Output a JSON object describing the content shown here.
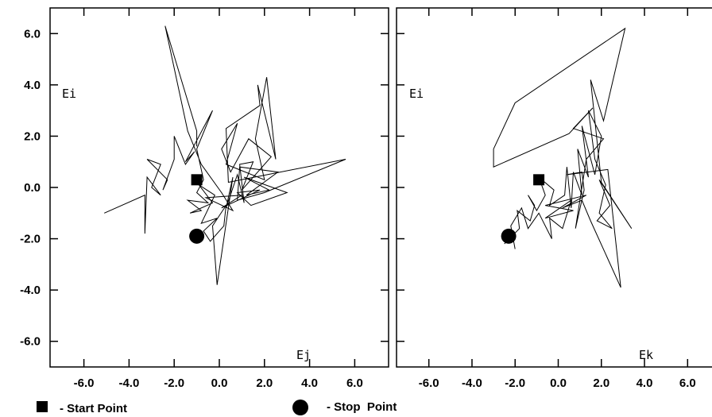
{
  "chart_data": [
    {
      "type": "line",
      "xlim": [
        -7.5,
        7.5
      ],
      "ylim": [
        -7,
        7
      ],
      "x_ticks": [
        "-6.0",
        "-4.0",
        "-2.0",
        "0.0",
        "2.0",
        "4.0",
        "6.0"
      ],
      "y_ticks": [
        "6.0",
        "4.0",
        "2.0",
        "0.0",
        "-2.0",
        "-4.0",
        "-6.0"
      ],
      "ylabel": "Ei",
      "xlabel": "Ej",
      "start": [
        -1.0,
        0.3
      ],
      "stop": [
        -1.0,
        -1.9
      ],
      "series": [
        {
          "values": [
            [
              -5.1,
              -1.0
            ],
            [
              -3.3,
              -0.3
            ],
            [
              -3.3,
              -1.8
            ],
            [
              -3.2,
              0.4
            ],
            [
              -2.6,
              -0.3
            ],
            [
              -3.0,
              0.0
            ],
            [
              -2.6,
              0.9
            ],
            [
              -3.2,
              1.1
            ],
            [
              -2.3,
              0.3
            ],
            [
              -2.5,
              -0.1
            ],
            [
              -2.0,
              1.1
            ],
            [
              -2.0,
              2.0
            ],
            [
              -1.5,
              0.9
            ],
            [
              -1.1,
              1.4
            ],
            [
              -1.5,
              1.0
            ],
            [
              -0.3,
              3.0
            ],
            [
              -1.0,
              1.5
            ],
            [
              -0.7,
              0.3
            ],
            [
              -1.0,
              -0.2
            ],
            [
              -0.5,
              -0.6
            ],
            [
              -1.4,
              -0.5
            ],
            [
              -0.8,
              -0.9
            ],
            [
              -1.3,
              -1.0
            ],
            [
              -0.3,
              -0.6
            ],
            [
              -0.9,
              0.1
            ],
            [
              -0.2,
              -0.3
            ],
            [
              -0.8,
              -1.4
            ],
            [
              -0.1,
              -1.2
            ],
            [
              -0.7,
              -1.7
            ],
            [
              -0.4,
              -2.1
            ],
            [
              0.2,
              -1.5
            ],
            [
              0.3,
              -0.7
            ],
            [
              -0.3,
              -1.5
            ],
            [
              -0.1,
              -3.8
            ],
            [
              0.6,
              0.4
            ],
            [
              0.3,
              -0.8
            ],
            [
              0.8,
              0.5
            ],
            [
              1.1,
              -0.6
            ],
            [
              0.9,
              0.9
            ],
            [
              1.5,
              1.0
            ],
            [
              1.0,
              -0.1
            ],
            [
              2.3,
              1.2
            ],
            [
              1.3,
              1.9
            ],
            [
              0.5,
              0.6
            ],
            [
              0.1,
              1.5
            ],
            [
              0.8,
              2.5
            ],
            [
              0.3,
              0.9
            ],
            [
              2.0,
              0.3
            ],
            [
              1.6,
              1.9
            ],
            [
              2.1,
              4.3
            ],
            [
              2.5,
              1.1
            ],
            [
              1.7,
              4.0
            ],
            [
              1.8,
              3.2
            ],
            [
              0.3,
              2.3
            ],
            [
              0.4,
              0.2
            ],
            [
              5.6,
              1.1
            ],
            [
              2.0,
              -0.2
            ],
            [
              0.8,
              -0.5
            ],
            [
              0.9,
              0.8
            ],
            [
              2.6,
              0.6
            ],
            [
              1.2,
              -0.3
            ],
            [
              2.2,
              -0.1
            ],
            [
              1.1,
              0.4
            ],
            [
              3.0,
              -0.2
            ],
            [
              1.4,
              -0.7
            ],
            [
              0.8,
              -0.2
            ],
            [
              1.8,
              -0.1
            ],
            [
              0.1,
              -0.8
            ],
            [
              1.0,
              -0.3
            ],
            [
              -0.6,
              -0.4
            ],
            [
              0.6,
              -0.9
            ],
            [
              0.1,
              -0.2
            ],
            [
              -0.8,
              0.9
            ],
            [
              -1.4,
              2.2
            ],
            [
              -2.4,
              6.3
            ],
            [
              -1.0,
              2.2
            ],
            [
              -1.0,
              1.6
            ]
          ]
        }
      ]
    },
    {
      "type": "line",
      "xlim": [
        -7.5,
        7.5
      ],
      "ylim": [
        -7,
        7
      ],
      "x_ticks": [
        "-6.0",
        "-4.0",
        "-2.0",
        "0.0",
        "2.0",
        "4.0",
        "6.0"
      ],
      "y_ticks": [],
      "ylabel": "Ei",
      "xlabel": "Ek",
      "start": [
        -0.9,
        0.3
      ],
      "stop": [
        -2.3,
        -1.9
      ],
      "series": [
        {
          "values": [
            [
              -2.5,
              -2.2
            ],
            [
              -1.8,
              -1.6
            ],
            [
              -1.9,
              -0.9
            ],
            [
              -1.3,
              -1.3
            ],
            [
              -1.1,
              -0.7
            ],
            [
              -1.4,
              -0.3
            ],
            [
              -1.0,
              -0.9
            ],
            [
              -0.6,
              -0.3
            ],
            [
              -0.9,
              0.4
            ],
            [
              -0.2,
              -0.1
            ],
            [
              -0.4,
              -0.7
            ],
            [
              0.3,
              -0.3
            ],
            [
              0.4,
              0.8
            ],
            [
              0.6,
              -0.8
            ],
            [
              0.7,
              0.6
            ],
            [
              1.1,
              -0.3
            ],
            [
              0.9,
              1.5
            ],
            [
              1.4,
              0.4
            ],
            [
              1.1,
              2.4
            ],
            [
              1.7,
              0.5
            ],
            [
              2.0,
              2.0
            ],
            [
              1.4,
              3.0
            ],
            [
              1.7,
              1.1
            ],
            [
              2.2,
              0.1
            ],
            [
              1.9,
              -1.0
            ],
            [
              2.5,
              -1.6
            ],
            [
              1.8,
              -1.3
            ],
            [
              2.4,
              -0.7
            ],
            [
              1.9,
              0.3
            ],
            [
              3.4,
              -1.6
            ],
            [
              2.0,
              0.2
            ],
            [
              1.5,
              4.2
            ],
            [
              2.1,
              2.6
            ],
            [
              3.1,
              6.2
            ],
            [
              -2.0,
              3.3
            ],
            [
              -3.0,
              1.5
            ],
            [
              -3.0,
              0.8
            ],
            [
              0.5,
              2.1
            ],
            [
              1.6,
              3.1
            ],
            [
              0.7,
              2.3
            ],
            [
              2.1,
              1.9
            ],
            [
              1.3,
              1.1
            ],
            [
              0.8,
              -1.6
            ],
            [
              1.2,
              -0.1
            ],
            [
              1.1,
              0.6
            ],
            [
              0.4,
              0.5
            ],
            [
              2.3,
              0.7
            ],
            [
              2.9,
              -3.9
            ],
            [
              1.5,
              -1.3
            ],
            [
              1.1,
              -0.5
            ],
            [
              0.2,
              -0.8
            ],
            [
              1.3,
              -0.3
            ],
            [
              -0.6,
              -0.7
            ],
            [
              0.7,
              -0.9
            ],
            [
              -0.6,
              -1.2
            ],
            [
              0.6,
              -0.5
            ],
            [
              0.2,
              -1.6
            ],
            [
              -0.4,
              -1.2
            ],
            [
              -0.3,
              -2.0
            ],
            [
              -0.9,
              -1.0
            ],
            [
              -1.4,
              -1.6
            ],
            [
              -1.7,
              -0.8
            ],
            [
              -2.2,
              -1.5
            ],
            [
              -2.0,
              -2.4
            ]
          ]
        }
      ]
    }
  ],
  "legend": {
    "start_label": "- Start Point",
    "stop_label": "- Stop  Point"
  }
}
